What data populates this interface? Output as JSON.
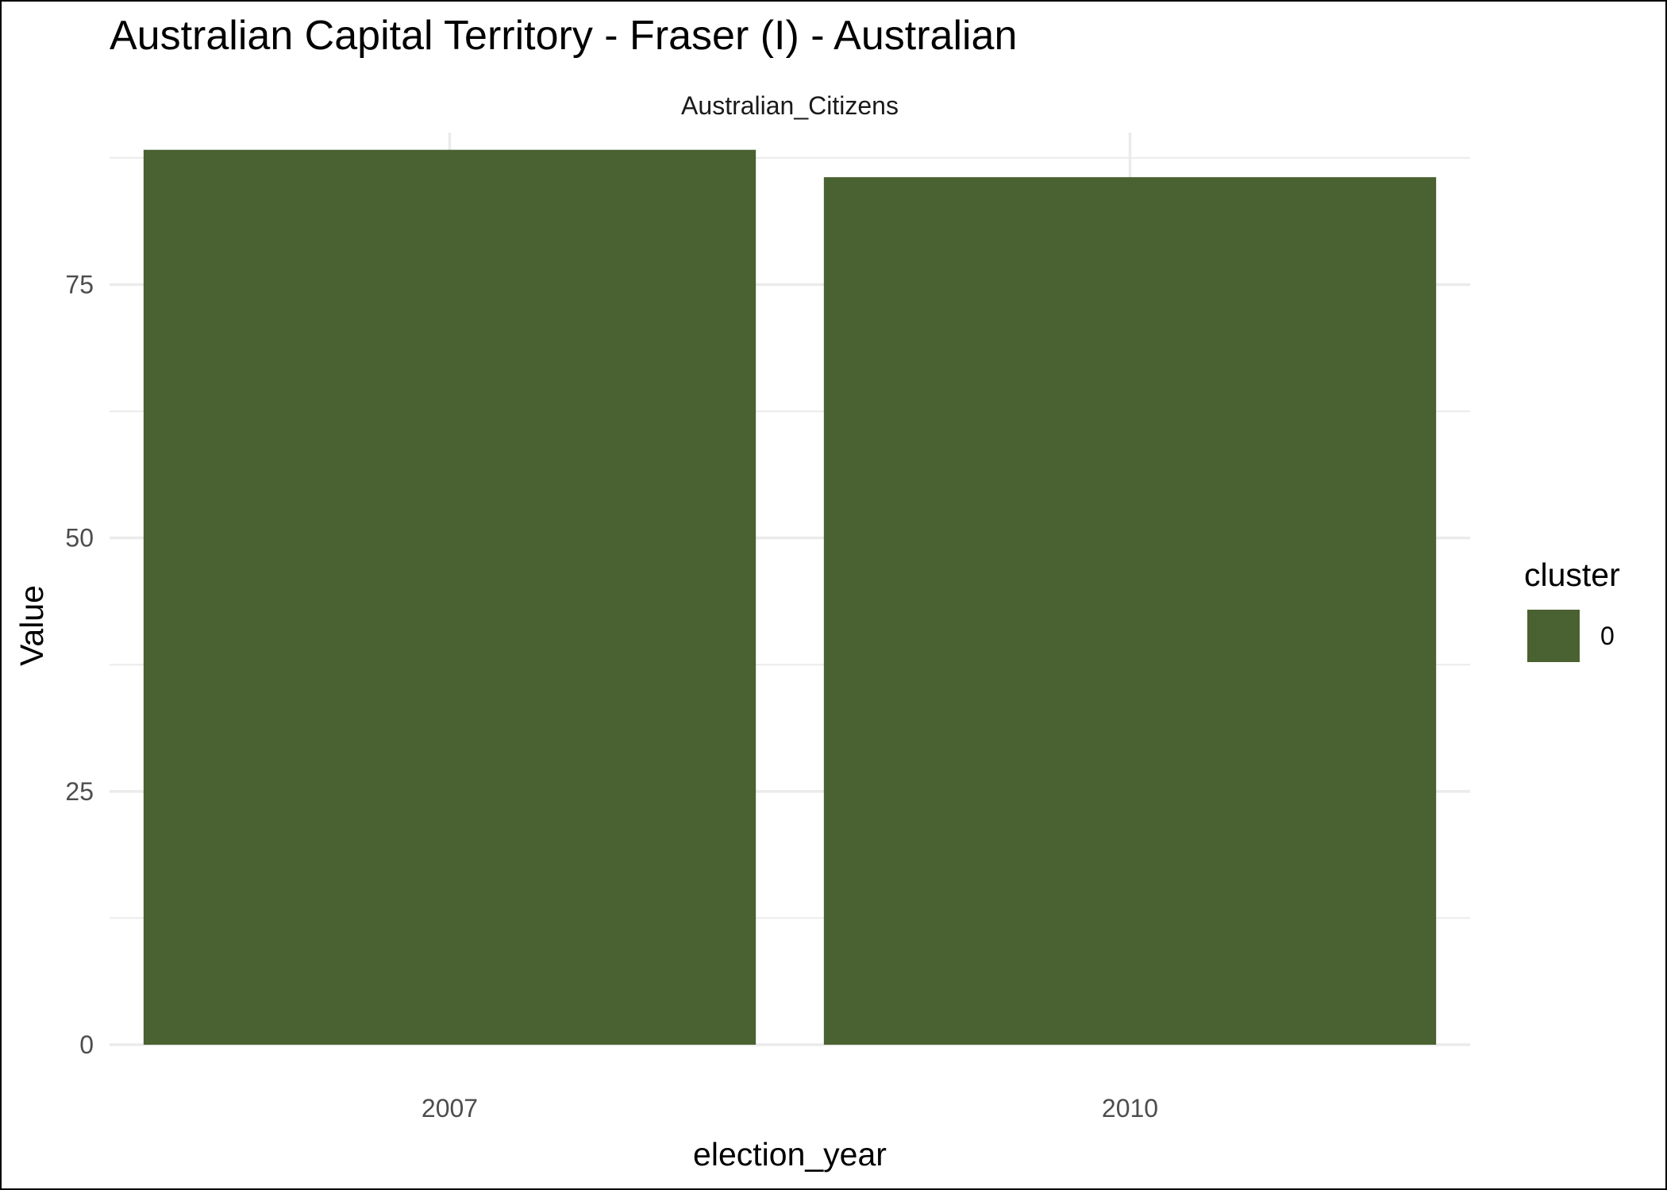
{
  "chart_data": {
    "type": "bar",
    "title": "Australian Capital Territory - Fraser (I) - Australian",
    "facet": "Australian_Citizens",
    "xlabel": "election_year",
    "ylabel": "Value",
    "categories": [
      "2007",
      "2010"
    ],
    "series": [
      {
        "name": "0",
        "values": [
          88.3,
          85.6
        ],
        "color": "#4a6131"
      }
    ],
    "ylim": [
      0,
      90
    ],
    "yticks": [
      0,
      25,
      50,
      75
    ],
    "grid": true,
    "legend": {
      "title": "cluster",
      "position": "right",
      "entries": [
        "0"
      ]
    }
  }
}
